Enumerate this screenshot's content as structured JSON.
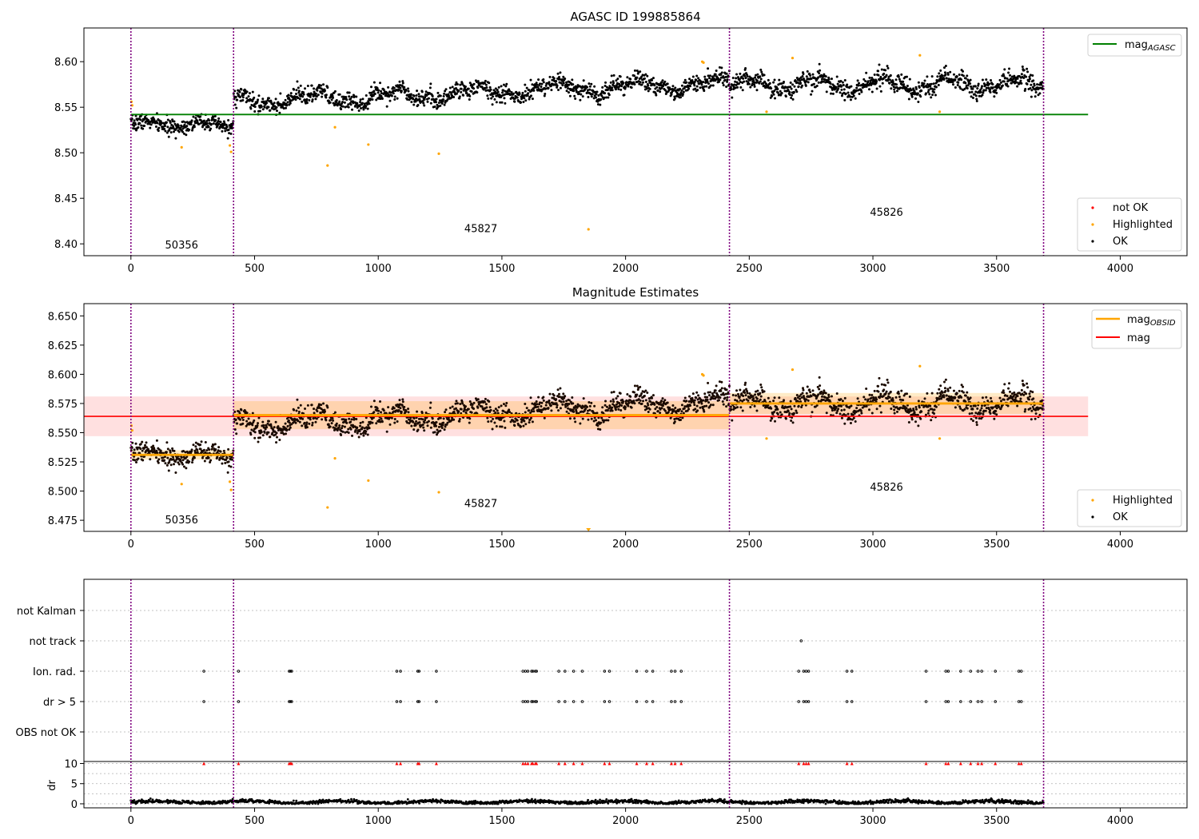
{
  "chart_data": [
    {
      "type": "scatter",
      "title": "AGASC ID 199885864",
      "xlim": [
        -190,
        4270
      ],
      "ylim": [
        8.387,
        8.637
      ],
      "xticks": [
        0,
        500,
        1000,
        1500,
        2000,
        2500,
        3000,
        3500,
        4000
      ],
      "yticks": [
        8.4,
        8.45,
        8.5,
        8.55,
        8.6
      ],
      "ytick_labels": [
        "8.40",
        "8.45",
        "8.50",
        "8.55",
        "8.60"
      ],
      "obsid_boundaries": [
        0,
        415,
        2420,
        3690
      ],
      "obsid_labels": [
        {
          "text": "50356",
          "x": 205,
          "y": 8.395
        },
        {
          "text": "45827",
          "x": 1415,
          "y": 8.413
        },
        {
          "text": "45826",
          "x": 3055,
          "y": 8.431
        }
      ],
      "mag_agasc": {
        "label_main": "mag",
        "label_sub": "AGASC",
        "value": 8.542,
        "x_range": [
          0,
          3870
        ],
        "color": "#008000"
      },
      "segments": [
        {
          "x0": 0,
          "x1": 415,
          "mean": 8.531,
          "amp": 0.0035
        },
        {
          "x0": 415,
          "x1": 2420,
          "mean_start": 8.556,
          "mean_end": 8.577,
          "amp": 0.006
        },
        {
          "x0": 2420,
          "x1": 3690,
          "mean": 8.575,
          "amp": 0.007
        }
      ],
      "highlighted": [
        [
          2,
          8.556
        ],
        [
          5,
          8.552
        ],
        [
          205,
          8.506
        ],
        [
          400,
          8.508
        ],
        [
          405,
          8.501
        ],
        [
          795,
          8.486
        ],
        [
          825,
          8.528
        ],
        [
          960,
          8.509
        ],
        [
          1245,
          8.499
        ],
        [
          1850,
          8.416
        ],
        [
          2310,
          8.6
        ],
        [
          2315,
          8.599
        ],
        [
          2570,
          8.545
        ],
        [
          2675,
          8.604
        ],
        [
          3190,
          8.607
        ],
        [
          3270,
          8.545
        ]
      ],
      "legend_top": [
        "mag_AGASC"
      ],
      "legend_bottom": [
        {
          "label": "not OK",
          "color": "#ff0000"
        },
        {
          "label": "Highlighted",
          "color": "#ffa500"
        },
        {
          "label": "OK",
          "color": "#000000"
        }
      ]
    },
    {
      "type": "scatter",
      "title": "Magnitude Estimates",
      "xlim": [
        -190,
        4270
      ],
      "ylim": [
        8.4655,
        8.6605
      ],
      "xticks": [
        0,
        500,
        1000,
        1500,
        2000,
        2500,
        3000,
        3500,
        4000
      ],
      "yticks": [
        8.475,
        8.5,
        8.525,
        8.55,
        8.575,
        8.6,
        8.625,
        8.65
      ],
      "ytick_labels": [
        "8.475",
        "8.500",
        "8.525",
        "8.550",
        "8.575",
        "8.600",
        "8.625",
        "8.650"
      ],
      "obsid_labels": [
        {
          "text": "50356",
          "x": 205,
          "y": 8.4725
        },
        {
          "text": "45827",
          "x": 1415,
          "y": 8.4865
        },
        {
          "text": "45826",
          "x": 3055,
          "y": 8.5005
        }
      ],
      "mag": {
        "label": "mag",
        "value": 8.564,
        "band": [
          8.547,
          8.581
        ],
        "x_range": [
          -190,
          3870
        ],
        "color": "#ff0000"
      },
      "mag_obsid": {
        "label_main": "mag",
        "label_sub": "OBSID",
        "color": "#ffa500",
        "segments": [
          {
            "x0": 0,
            "x1": 415,
            "value": 8.531,
            "band": [
              8.527,
              8.535
            ]
          },
          {
            "x0": 415,
            "x1": 2420,
            "value": 8.565,
            "band": [
              8.553,
              8.577
            ]
          },
          {
            "x0": 2420,
            "x1": 3690,
            "value": 8.575,
            "band": [
              8.566,
              8.584
            ]
          }
        ]
      },
      "legend_top": [
        "mag_OBSID",
        "mag"
      ],
      "legend_bottom": [
        {
          "label": "Highlighted",
          "color": "#ffa500"
        },
        {
          "label": "OK",
          "color": "#000000"
        }
      ]
    },
    {
      "type": "scatter",
      "title": "",
      "xlim": [
        -190,
        4270
      ],
      "categories": [
        "not Kalman",
        "not track",
        "Ion. rad.",
        "dr > 5",
        "OBS not OK"
      ],
      "flags": {
        "Ion. rad.": [
          295,
          435,
          640,
          645,
          650,
          1075,
          1090,
          1160,
          1165,
          1235,
          1585,
          1595,
          1605,
          1620,
          1625,
          1635,
          1640,
          1730,
          1755,
          1790,
          1825,
          1915,
          1935,
          2045,
          2085,
          2110,
          2185,
          2200,
          2225,
          2700,
          2720,
          2730,
          2740,
          2895,
          2915,
          3215,
          3295,
          3305,
          3355,
          3395,
          3425,
          3440,
          3495,
          3590,
          3600
        ],
        "dr > 5": [
          295,
          435,
          640,
          645,
          650,
          1075,
          1090,
          1160,
          1165,
          1235,
          1585,
          1595,
          1605,
          1620,
          1625,
          1635,
          1640,
          1730,
          1755,
          1790,
          1825,
          1915,
          1935,
          2045,
          2085,
          2110,
          2185,
          2200,
          2225,
          2700,
          2720,
          2730,
          2740,
          2895,
          2915,
          3215,
          3295,
          3305,
          3355,
          3395,
          3425,
          3440,
          3495,
          3590,
          3600
        ],
        "not track": [
          2710
        ]
      }
    },
    {
      "type": "scatter",
      "title": "",
      "ylabel": "dr",
      "xlim": [
        -190,
        4270
      ],
      "ylim": [
        -1,
        10.5
      ],
      "xticks": [
        0,
        500,
        1000,
        1500,
        2000,
        2500,
        3000,
        3500,
        4000
      ],
      "yticks": [
        0,
        5,
        10
      ],
      "ytick_labels": [
        "0",
        "5",
        "10"
      ],
      "clipped_at": 10,
      "clipped_marker_color": "#ff0000"
    }
  ]
}
